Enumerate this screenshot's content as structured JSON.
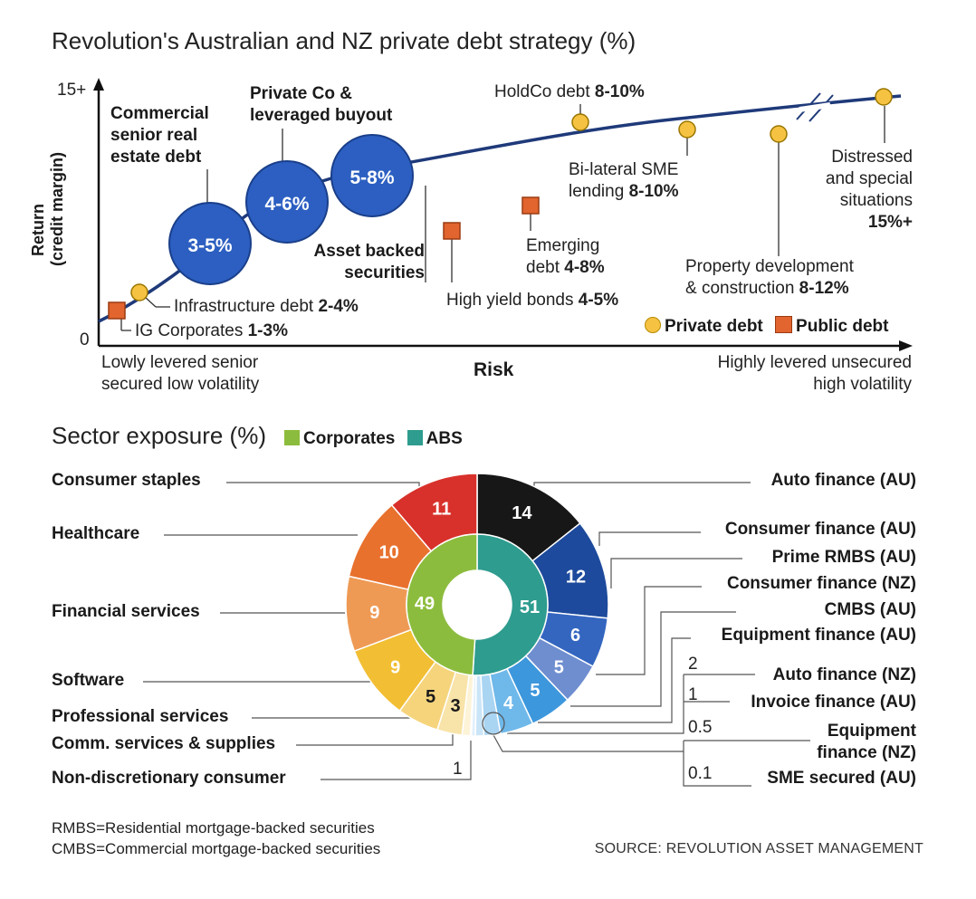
{
  "chart_data": [
    {
      "type": "scatter",
      "title": "Revolution's Australian and NZ private debt strategy (%)",
      "xlabel": "Risk",
      "ylabel": "Return (credit margin)",
      "y_ticks": [
        "15+",
        "0"
      ],
      "x_left_label": "Lowly levered senior secured low volatility",
      "x_right_label": "Highly levered unsecured high volatility",
      "legend": [
        {
          "name": "Private debt",
          "color": "#f5c242"
        },
        {
          "name": "Public debt",
          "color": "#e2642e"
        }
      ],
      "bubbles": [
        {
          "value": "3-5%",
          "category": "Commercial senior real estate debt",
          "color": "#2c5fc1"
        },
        {
          "value": "4-6%",
          "category": "Private Co & leveraged buyout",
          "color": "#2c5fc1"
        },
        {
          "value": "5-8%",
          "category": "Asset backed securities",
          "color": "#2c5fc1"
        }
      ],
      "points": [
        {
          "name": "IG Corporates",
          "range": "1-3%",
          "kind": "public"
        },
        {
          "name": "Infrastructure debt",
          "range": "2-4%",
          "kind": "private"
        },
        {
          "name": "High yield bonds",
          "range": "4-5%",
          "kind": "public"
        },
        {
          "name": "Emerging debt",
          "range": "4-8%",
          "kind": "public"
        },
        {
          "name": "HoldCo debt",
          "range": "8-10%",
          "kind": "private"
        },
        {
          "name": "Bi-lateral SME lending",
          "range": "8-10%",
          "kind": "private"
        },
        {
          "name": "Property development & construction",
          "range": "8-12%",
          "kind": "private"
        },
        {
          "name": "Distressed and special situations",
          "range": "15%+",
          "kind": "private"
        }
      ]
    },
    {
      "type": "pie",
      "title": "Sector exposure (%)",
      "inner": [
        {
          "name": "Corporates",
          "value": 49,
          "color": "#8cbc3d"
        },
        {
          "name": "ABS",
          "value": 51,
          "color": "#2e9c8f"
        }
      ],
      "outer": [
        {
          "name": "Auto finance (AU)",
          "value": 14,
          "color": "#171717"
        },
        {
          "name": "Consumer finance (AU)",
          "value": 12,
          "color": "#1d4a9c"
        },
        {
          "name": "Prime RMBS (AU)",
          "value": 6,
          "color": "#3466c0"
        },
        {
          "name": "Consumer finance (NZ)",
          "value": 5,
          "color": "#6f8ed0"
        },
        {
          "name": "CMBS (AU)",
          "value": 5,
          "color": "#3d97dc"
        },
        {
          "name": "Equipment finance (AU)",
          "value": 4,
          "color": "#6fb8ea"
        },
        {
          "name": "Auto finance (NZ)",
          "value": 2,
          "color": "#a9d4f2"
        },
        {
          "name": "Invoice finance (AU)",
          "value": 1,
          "color": "#cbe5f8"
        },
        {
          "name": "Equipment finance (NZ)",
          "value": 0.5,
          "color": "#e2f0fb"
        },
        {
          "name": "SME secured (AU)",
          "value": 0.1,
          "color": "#f2f8fd"
        },
        {
          "name": "Non-discretionary consumer",
          "value": 1,
          "color": "#fdf3d7"
        },
        {
          "name": "Comm. services & supplies",
          "value": 3,
          "color": "#f8e3a8"
        },
        {
          "name": "Professional services",
          "value": 5,
          "color": "#f5d47c"
        },
        {
          "name": "Software",
          "value": 9,
          "color": "#f2be33"
        },
        {
          "name": "Financial services",
          "value": 9,
          "color": "#ee9a55"
        },
        {
          "name": "Healthcare",
          "value": 10,
          "color": "#e8712e"
        },
        {
          "name": "Consumer staples",
          "value": 11,
          "color": "#d8312b"
        }
      ],
      "outer_value_labels": [
        "14",
        "12",
        "6",
        "5",
        "5",
        "4",
        "2",
        "1",
        "0.5",
        "0.1",
        "1",
        "3",
        "5",
        "9",
        "9",
        "10",
        "11"
      ],
      "inner_value_labels": [
        "49",
        "51"
      ]
    }
  ],
  "top": {
    "title": "Revolution's Australian and NZ private debt strategy (%)",
    "y_top": "15+",
    "y_bottom": "0",
    "y_axis_line1": "Return",
    "y_axis_line2": "(credit margin)",
    "x_axis": "Risk",
    "x_left_1": "Lowly levered senior",
    "x_left_2": "secured low volatility",
    "x_right_1": "Highly levered unsecured",
    "x_right_2": "high volatility",
    "legend_private": "Private debt",
    "legend_public": "Public debt",
    "b1_label": "3-5%",
    "b2_label": "4-6%",
    "b3_label": "5-8%",
    "b1_cat_1": "Commercial",
    "b1_cat_2": "senior real",
    "b1_cat_3": "estate debt",
    "b2_cat_1": "Private Co &",
    "b2_cat_2": "leveraged buyout",
    "b3_cat_1": "Asset backed",
    "b3_cat_2": "securities",
    "ig_name": "IG Corporates ",
    "ig_range": "1-3%",
    "infra_name": "Infrastructure debt ",
    "infra_range": "2-4%",
    "hy_name": "High yield bonds ",
    "hy_range": "4-5%",
    "em_name_1": "Emerging",
    "em_name_2": "debt ",
    "em_range": "4-8%",
    "holdco_name": "HoldCo debt ",
    "holdco_range": "8-10%",
    "sme_name_1": "Bi-lateral SME",
    "sme_name_2": "lending ",
    "sme_range": "8-10%",
    "prop_name_1": "Property development",
    "prop_name_2": "& construction ",
    "prop_range": "8-12%",
    "dist_1": "Distressed",
    "dist_2": "and special",
    "dist_3": "situations",
    "dist_range": "15%+"
  },
  "sector": {
    "title": "Sector exposure (%)",
    "legend_corporates": "Corporates",
    "legend_abs": "ABS",
    "left_labels": [
      "Consumer staples",
      "Healthcare",
      "Financial services",
      "Software",
      "Professional services",
      "Comm. services & supplies",
      "Non-discretionary consumer"
    ],
    "right_labels": [
      "Auto finance (AU)",
      "Consumer finance (AU)",
      "Prime RMBS (AU)",
      "Consumer finance (NZ)",
      "CMBS (AU)",
      "Equipment finance (AU)",
      "Auto finance (NZ)",
      "Invoice finance (AU)",
      "Equipment finance (NZ)",
      "SME secured (AU)"
    ],
    "equip_nz_1": "Equipment",
    "equip_nz_2": "finance (NZ)",
    "small_values": [
      "2",
      "1",
      "0.5",
      "0.1"
    ],
    "non_disc_value": "1"
  },
  "footer": {
    "rmbs": "RMBS=Residential mortgage-backed securities",
    "cmbs": "CMBS=Commercial mortgage-backed securities",
    "source": "SOURCE: REVOLUTION ASSET MANAGEMENT"
  }
}
